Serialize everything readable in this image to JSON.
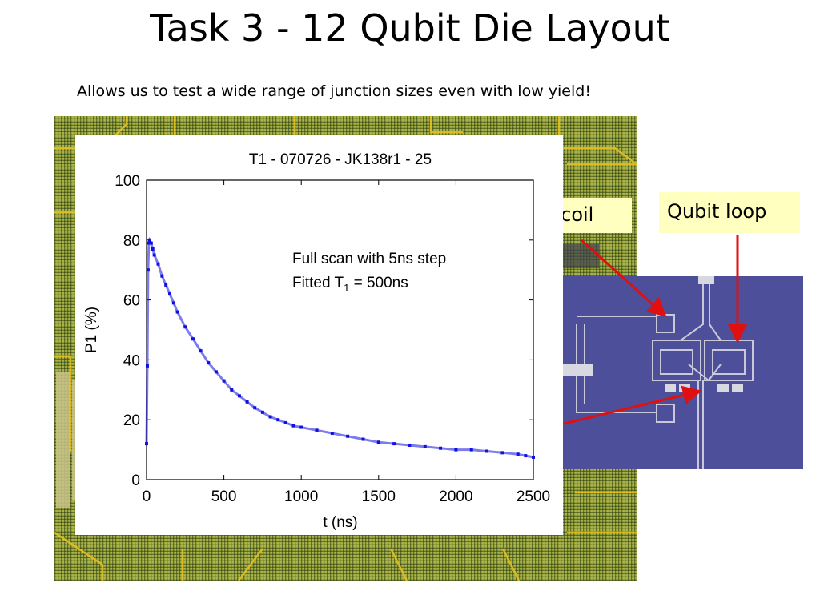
{
  "slide": {
    "title": "Task 3 - 12 Qubit Die Layout",
    "subtitle": "Allows us to test a wide range of junction sizes even with low yield!"
  },
  "labels": {
    "coil": "s coil",
    "qubit_loop": "Qubit loop"
  },
  "colors": {
    "die_green": "#7c8a2a",
    "trace_yellow": "#e6c020",
    "qubit_photo_blue": "#4e4f9a",
    "arrow_red": "#e01010",
    "label_fill": "#ffffc0",
    "data_blue": "#1010e0"
  },
  "chart_data": {
    "type": "scatter",
    "title": "T1 - 070726 - JK138r1 - 25",
    "xlabel": "t (ns)",
    "ylabel": "P1 (%)",
    "xlim": [
      0,
      2500
    ],
    "ylim": [
      0,
      100
    ],
    "xticks": [
      0,
      500,
      1000,
      1500,
      2000,
      2500
    ],
    "yticks": [
      0,
      20,
      40,
      60,
      80,
      100
    ],
    "annotation_lines": [
      "Full scan with 5ns step",
      "Fitted T",
      "1",
      " = 500ns"
    ],
    "grid": false,
    "series": [
      {
        "x": [
          0,
          5,
          10,
          15,
          20,
          30,
          40,
          50,
          75,
          100,
          125,
          150,
          175,
          200,
          250,
          300,
          350,
          400,
          450,
          500,
          550,
          600,
          650,
          700,
          750,
          800,
          850,
          900,
          950,
          1000,
          1100,
          1200,
          1300,
          1400,
          1500,
          1600,
          1700,
          1800,
          1900,
          2000,
          2100,
          2200,
          2300,
          2400,
          2450,
          2500
        ],
        "y": [
          12,
          38,
          70,
          79,
          80,
          79,
          77,
          75,
          72,
          68,
          65,
          62,
          59,
          56,
          51,
          47,
          43,
          39,
          36,
          33,
          30,
          28,
          26,
          24,
          22.5,
          21,
          20,
          19,
          18,
          17.5,
          16.5,
          15.5,
          14.5,
          13.5,
          12.5,
          12,
          11.5,
          11,
          10.5,
          10,
          10,
          9.5,
          9,
          8.5,
          8,
          7.5
        ]
      }
    ]
  }
}
